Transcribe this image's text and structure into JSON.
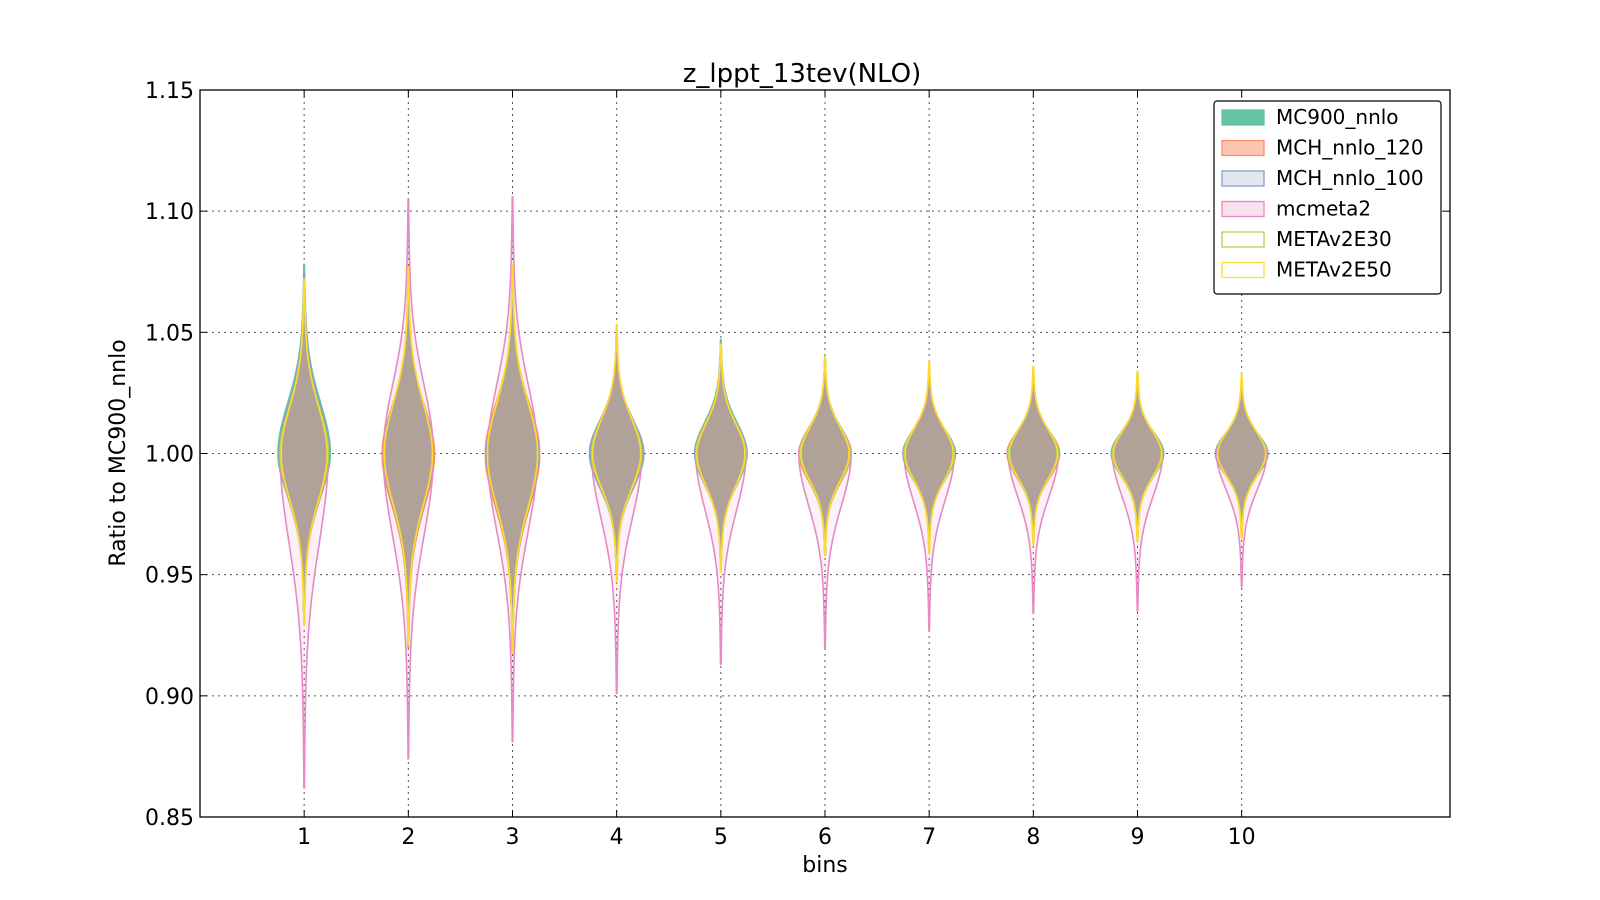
{
  "chart_data": {
    "type": "violin",
    "title": "z_lppt_13tev(NLO)",
    "xlabel": "bins",
    "ylabel": "Ratio to MC900_nnlo",
    "xlim": [
      0,
      12
    ],
    "ylim": [
      0.85,
      1.15
    ],
    "x_ticks": [
      1,
      2,
      3,
      4,
      5,
      6,
      7,
      8,
      9,
      10
    ],
    "y_ticks": [
      "0.85",
      "0.90",
      "0.95",
      "1.00",
      "1.05",
      "1.10",
      "1.15"
    ],
    "grid": true,
    "legend_position": "top-right",
    "categories": [
      "1",
      "2",
      "3",
      "4",
      "5",
      "6",
      "7",
      "8",
      "9",
      "10"
    ],
    "series": [
      {
        "name": "MC900_nnlo",
        "color": "#66c2a5",
        "fill_opacity": 1.0,
        "min": [
          0.935,
          0.925,
          0.92,
          0.95,
          0.955,
          0.96,
          0.962,
          0.965,
          0.967,
          0.968
        ],
        "max": [
          1.078,
          1.07,
          1.072,
          1.05,
          1.047,
          1.038,
          1.035,
          1.033,
          1.032,
          1.03
        ],
        "half_width": [
          0.25,
          0.24,
          0.25,
          0.25,
          0.25,
          0.24,
          0.25,
          0.25,
          0.25,
          0.25
        ]
      },
      {
        "name": "MCH_nnlo_120",
        "color": "#fc8d62",
        "fill_opacity": 0.5,
        "min": [
          0.93,
          0.92,
          0.918,
          0.948,
          0.952,
          0.958,
          0.96,
          0.963,
          0.965,
          0.966
        ],
        "max": [
          1.072,
          1.072,
          1.075,
          1.05,
          1.044,
          1.038,
          1.035,
          1.033,
          1.032,
          1.03
        ],
        "half_width": [
          0.24,
          0.25,
          0.26,
          0.24,
          0.24,
          0.25,
          0.24,
          0.25,
          0.24,
          0.24
        ]
      },
      {
        "name": "MCH_nnlo_100",
        "color": "#8da0cb",
        "fill_opacity": 0.22,
        "min": [
          0.932,
          0.922,
          0.92,
          0.948,
          0.953,
          0.959,
          0.961,
          0.964,
          0.966,
          0.967
        ],
        "max": [
          1.074,
          1.074,
          1.074,
          1.05,
          1.045,
          1.038,
          1.035,
          1.033,
          1.032,
          1.03
        ],
        "half_width": [
          0.24,
          0.24,
          0.25,
          0.26,
          0.25,
          0.24,
          0.25,
          0.24,
          0.25,
          0.24
        ]
      },
      {
        "name": "mcmeta2",
        "color": "#e78ac3",
        "fill_opacity": 0.12,
        "min": [
          0.862,
          0.874,
          0.881,
          0.901,
          0.913,
          0.92,
          0.927,
          0.934,
          0.935,
          0.945
        ],
        "max": [
          1.07,
          1.105,
          1.106,
          1.05,
          1.044,
          1.039,
          1.036,
          1.034,
          1.033,
          1.031
        ],
        "half_width": [
          0.23,
          0.24,
          0.24,
          0.24,
          0.24,
          0.25,
          0.24,
          0.24,
          0.24,
          0.24
        ]
      },
      {
        "name": "METAv2E30",
        "color": "#a6d854",
        "fill_opacity": 0.0,
        "min": [
          0.93,
          0.922,
          0.919,
          0.947,
          0.952,
          0.958,
          0.96,
          0.963,
          0.964,
          0.966
        ],
        "max": [
          1.071,
          1.076,
          1.076,
          1.052,
          1.045,
          1.04,
          1.037,
          1.035,
          1.033,
          1.032
        ],
        "half_width": [
          0.23,
          0.23,
          0.24,
          0.24,
          0.24,
          0.24,
          0.24,
          0.24,
          0.24,
          0.23
        ]
      },
      {
        "name": "METAv2E50",
        "color": "#ffd92f",
        "fill_opacity": 0.0,
        "min": [
          0.929,
          0.921,
          0.918,
          0.947,
          0.951,
          0.958,
          0.959,
          0.962,
          0.964,
          0.965
        ],
        "max": [
          1.072,
          1.077,
          1.078,
          1.053,
          1.045,
          1.04,
          1.038,
          1.036,
          1.034,
          1.033
        ],
        "half_width": [
          0.22,
          0.23,
          0.24,
          0.23,
          0.23,
          0.23,
          0.23,
          0.23,
          0.23,
          0.23
        ]
      }
    ]
  }
}
